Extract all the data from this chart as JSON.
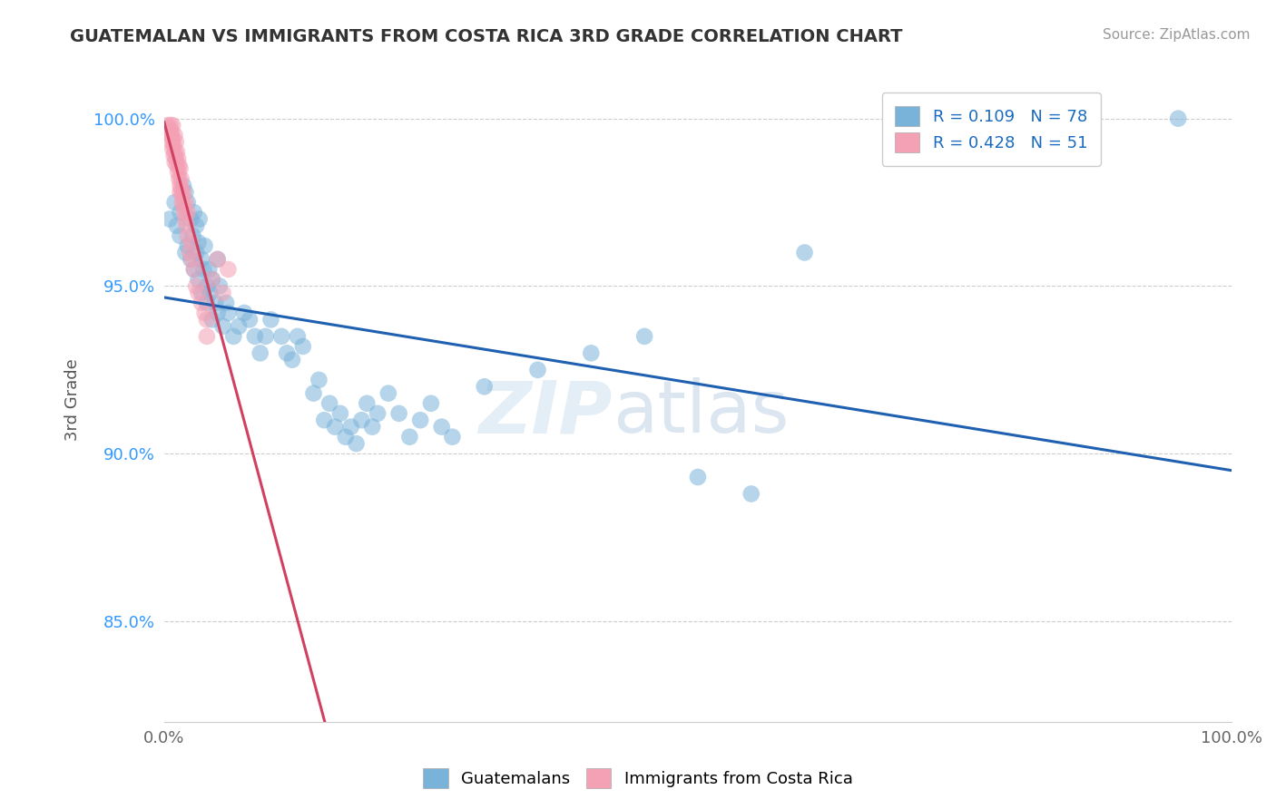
{
  "title": "GUATEMALAN VS IMMIGRANTS FROM COSTA RICA 3RD GRADE CORRELATION CHART",
  "source": "Source: ZipAtlas.com",
  "ylabel": "3rd Grade",
  "xlim": [
    0.0,
    1.0
  ],
  "ylim": [
    0.82,
    1.012
  ],
  "yticks": [
    0.85,
    0.9,
    0.95,
    1.0
  ],
  "ytick_labels": [
    "85.0%",
    "90.0%",
    "95.0%",
    "100.0%"
  ],
  "xticks": [
    0.0,
    0.25,
    0.5,
    0.75,
    1.0
  ],
  "xtick_labels": [
    "0.0%",
    "",
    "",
    "",
    "100.0%"
  ],
  "legend_blue_r": "R = 0.109",
  "legend_blue_n": "N = 78",
  "legend_pink_r": "R = 0.428",
  "legend_pink_n": "N = 51",
  "blue_color": "#7ab3d9",
  "pink_color": "#f4a0b5",
  "blue_line_color": "#2060b0",
  "pink_line_color": "#d04060",
  "legend_r_color": "#1a6bbf",
  "watermark_zip": "ZIP",
  "watermark_atlas": "atlas",
  "blue_scatter_x": [
    0.005,
    0.01,
    0.012,
    0.015,
    0.015,
    0.018,
    0.02,
    0.02,
    0.022,
    0.022,
    0.025,
    0.025,
    0.027,
    0.028,
    0.028,
    0.03,
    0.03,
    0.032,
    0.032,
    0.033,
    0.035,
    0.035,
    0.037,
    0.038,
    0.04,
    0.04,
    0.042,
    0.043,
    0.045,
    0.045,
    0.048,
    0.05,
    0.05,
    0.052,
    0.055,
    0.058,
    0.06,
    0.065,
    0.07,
    0.075,
    0.08,
    0.085,
    0.09,
    0.095,
    0.1,
    0.11,
    0.115,
    0.12,
    0.125,
    0.13,
    0.14,
    0.145,
    0.15,
    0.155,
    0.16,
    0.165,
    0.17,
    0.175,
    0.18,
    0.185,
    0.19,
    0.195,
    0.2,
    0.21,
    0.22,
    0.23,
    0.24,
    0.25,
    0.26,
    0.27,
    0.3,
    0.35,
    0.4,
    0.45,
    0.5,
    0.55,
    0.95,
    0.6
  ],
  "blue_scatter_y": [
    0.97,
    0.975,
    0.968,
    0.972,
    0.965,
    0.98,
    0.978,
    0.96,
    0.975,
    0.962,
    0.97,
    0.958,
    0.965,
    0.972,
    0.955,
    0.96,
    0.968,
    0.952,
    0.963,
    0.97,
    0.958,
    0.948,
    0.955,
    0.962,
    0.95,
    0.945,
    0.955,
    0.948,
    0.952,
    0.94,
    0.945,
    0.942,
    0.958,
    0.95,
    0.938,
    0.945,
    0.942,
    0.935,
    0.938,
    0.942,
    0.94,
    0.935,
    0.93,
    0.935,
    0.94,
    0.935,
    0.93,
    0.928,
    0.935,
    0.932,
    0.918,
    0.922,
    0.91,
    0.915,
    0.908,
    0.912,
    0.905,
    0.908,
    0.903,
    0.91,
    0.915,
    0.908,
    0.912,
    0.918,
    0.912,
    0.905,
    0.91,
    0.915,
    0.908,
    0.905,
    0.92,
    0.925,
    0.93,
    0.935,
    0.893,
    0.888,
    1.0,
    0.96
  ],
  "pink_scatter_x": [
    0.003,
    0.005,
    0.006,
    0.006,
    0.007,
    0.007,
    0.008,
    0.008,
    0.008,
    0.009,
    0.009,
    0.01,
    0.01,
    0.01,
    0.011,
    0.011,
    0.012,
    0.012,
    0.013,
    0.013,
    0.014,
    0.014,
    0.015,
    0.015,
    0.015,
    0.016,
    0.016,
    0.017,
    0.017,
    0.018,
    0.018,
    0.019,
    0.02,
    0.02,
    0.021,
    0.022,
    0.022,
    0.024,
    0.025,
    0.026,
    0.028,
    0.03,
    0.032,
    0.035,
    0.038,
    0.04,
    0.045,
    0.05,
    0.055,
    0.06,
    0.04
  ],
  "pink_scatter_y": [
    0.998,
    0.997,
    0.995,
    0.998,
    0.996,
    0.993,
    0.994,
    0.991,
    0.998,
    0.992,
    0.989,
    0.995,
    0.99,
    0.987,
    0.993,
    0.988,
    0.99,
    0.986,
    0.988,
    0.984,
    0.986,
    0.982,
    0.985,
    0.98,
    0.978,
    0.982,
    0.979,
    0.977,
    0.975,
    0.978,
    0.974,
    0.972,
    0.97,
    0.975,
    0.968,
    0.965,
    0.972,
    0.96,
    0.963,
    0.958,
    0.955,
    0.95,
    0.948,
    0.945,
    0.942,
    0.94,
    0.952,
    0.958,
    0.948,
    0.955,
    0.935
  ]
}
